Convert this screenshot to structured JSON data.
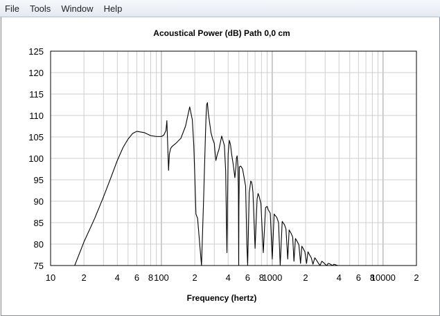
{
  "menu": {
    "items": [
      "File",
      "Tools",
      "Window",
      "Help"
    ]
  },
  "chart_data": {
    "type": "line",
    "title": "Acoustical Power (dB)   Path 0,0 cm",
    "xlabel": "Frequency (hertz)",
    "ylabel": "",
    "xscale": "log",
    "xlim": [
      10,
      20000
    ],
    "ylim": [
      75,
      125
    ],
    "grid": true,
    "x_tick_labels": [
      {
        "value": 10,
        "label": "10"
      },
      {
        "value": 20,
        "label": "2"
      },
      {
        "value": 40,
        "label": "4"
      },
      {
        "value": 60,
        "label": "6"
      },
      {
        "value": 80,
        "label": "8"
      },
      {
        "value": 100,
        "label": "100"
      },
      {
        "value": 200,
        "label": "2"
      },
      {
        "value": 400,
        "label": "4"
      },
      {
        "value": 600,
        "label": "6"
      },
      {
        "value": 800,
        "label": "8"
      },
      {
        "value": 1000,
        "label": "1000"
      },
      {
        "value": 2000,
        "label": "2"
      },
      {
        "value": 4000,
        "label": "4"
      },
      {
        "value": 6000,
        "label": "6"
      },
      {
        "value": 8000,
        "label": "8"
      },
      {
        "value": 10000,
        "label": "10000"
      },
      {
        "value": 20000,
        "label": "2"
      }
    ],
    "y_ticks": [
      75,
      80,
      85,
      90,
      95,
      100,
      105,
      110,
      115,
      120,
      125
    ],
    "series": [
      {
        "color": "#000000",
        "x": [
          16.5,
          20,
          25,
          30,
          35,
          40,
          45,
          50,
          55,
          60,
          70,
          80,
          90,
          100,
          105,
          110,
          112,
          114,
          116,
          118,
          121,
          125,
          135,
          150,
          165,
          180,
          190,
          196,
          200,
          205,
          212,
          220,
          230,
          240,
          250,
          253,
          256,
          260,
          265,
          270,
          280,
          290,
          300,
          303,
          310,
          320,
          330,
          350,
          370,
          380,
          390,
          400,
          410,
          420,
          430,
          445,
          460,
          470,
          475,
          482,
          490,
          495,
          498,
          500,
          505,
          520,
          540,
          560,
          575,
          590,
          600,
          620,
          640,
          650,
          660,
          670,
          700,
          730,
          745,
          760,
          790,
          830,
          870,
          900,
          920,
          960,
          1000,
          1040,
          1100,
          1140,
          1180,
          1230,
          1290,
          1330,
          1380,
          1420,
          1480,
          1530,
          1570,
          1620,
          1680,
          1740,
          1800,
          1850,
          1900,
          1970,
          2040,
          2100,
          2160,
          2250,
          2330,
          2420,
          2500,
          2600,
          2700,
          2800,
          2900,
          3000,
          3100,
          3200,
          3300,
          3400,
          3500,
          3600,
          3700,
          3800,
          3900,
          4000
        ],
        "y": [
          75,
          80.5,
          86,
          91,
          95.5,
          99.5,
          102.5,
          104.5,
          105.8,
          106.3,
          106,
          105.3,
          105.1,
          105.1,
          105.4,
          106.5,
          108.8,
          103,
          97.2,
          101,
          102.3,
          102.8,
          103.5,
          104.7,
          107.5,
          112,
          109,
          103,
          96,
          87,
          86,
          81,
          75,
          90,
          106,
          110,
          112.5,
          113,
          110.5,
          109,
          106,
          104.5,
          103.5,
          102,
          99.5,
          101,
          102,
          105.2,
          103,
          97,
          78,
          101,
          104.2,
          103.2,
          101,
          98.5,
          95.5,
          98,
          100,
          100.6,
          98,
          93,
          75,
          88,
          98,
          98.2,
          97.5,
          95.2,
          93.5,
          80,
          75,
          92,
          94.7,
          94.5,
          93.7,
          92,
          79,
          90.5,
          91.8,
          91.2,
          89.5,
          78,
          88.5,
          88.8,
          88,
          87.2,
          76.5,
          87,
          86.2,
          85,
          75,
          85.3,
          84.5,
          83.5,
          76.5,
          83.3,
          82.5,
          81.6,
          76,
          81.3,
          80.6,
          79.8,
          75.5,
          79.5,
          79,
          78.2,
          75.5,
          78.2,
          77.6,
          76.8,
          75.3,
          76.8,
          76.3,
          75.6,
          75,
          76,
          75.7,
          75.3,
          75,
          75.5,
          75.4,
          75.2,
          75,
          75.3,
          75.2,
          75.1,
          75,
          75
        ]
      }
    ]
  }
}
